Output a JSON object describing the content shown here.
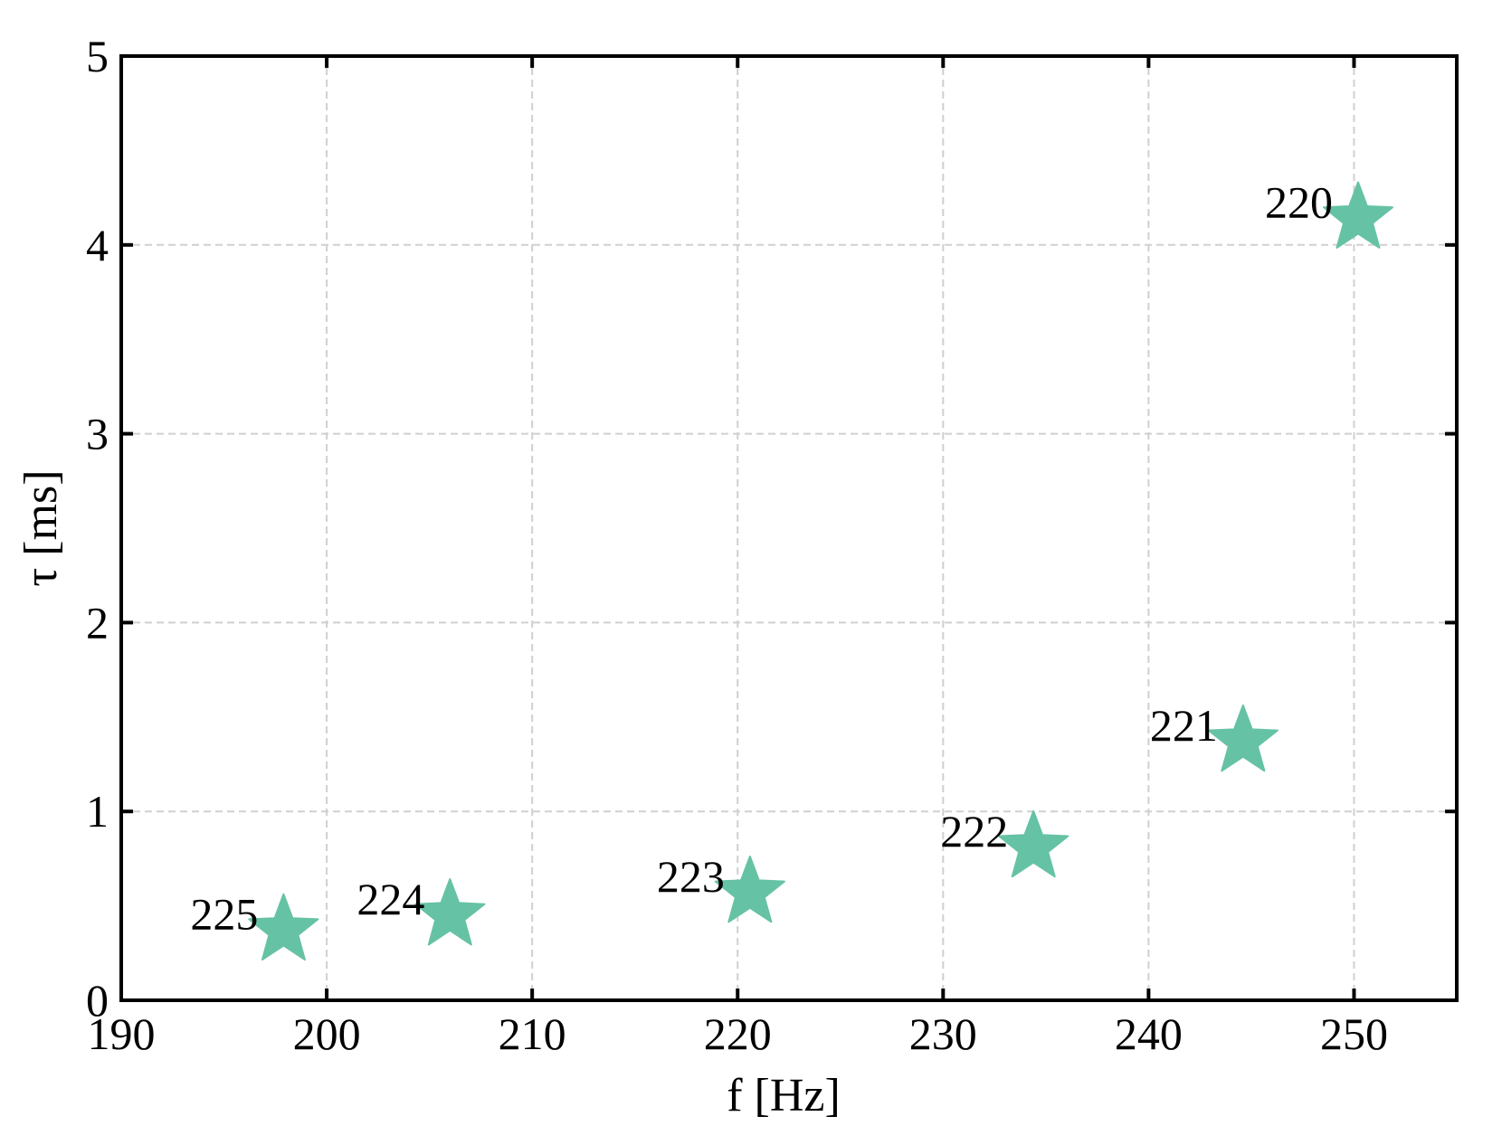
{
  "chart_data": {
    "type": "scatter",
    "x_label": "f [Hz]",
    "y_label": "τ [ms]",
    "xlim": [
      190,
      255
    ],
    "ylim": [
      0,
      5
    ],
    "xticks": [
      190,
      200,
      210,
      220,
      230,
      240,
      250
    ],
    "yticks": [
      0,
      1,
      2,
      3,
      4,
      5
    ],
    "grid": true,
    "marker": "star",
    "series": [
      {
        "color": "#66c2a5",
        "x": [
          250.2,
          244.6,
          234.4,
          220.6,
          206.0,
          197.9
        ],
        "values": [
          4.14,
          1.37,
          0.81,
          0.57,
          0.45,
          0.37
        ],
        "labels": [
          "220",
          "221",
          "222",
          "223",
          "224",
          "225"
        ]
      }
    ]
  }
}
